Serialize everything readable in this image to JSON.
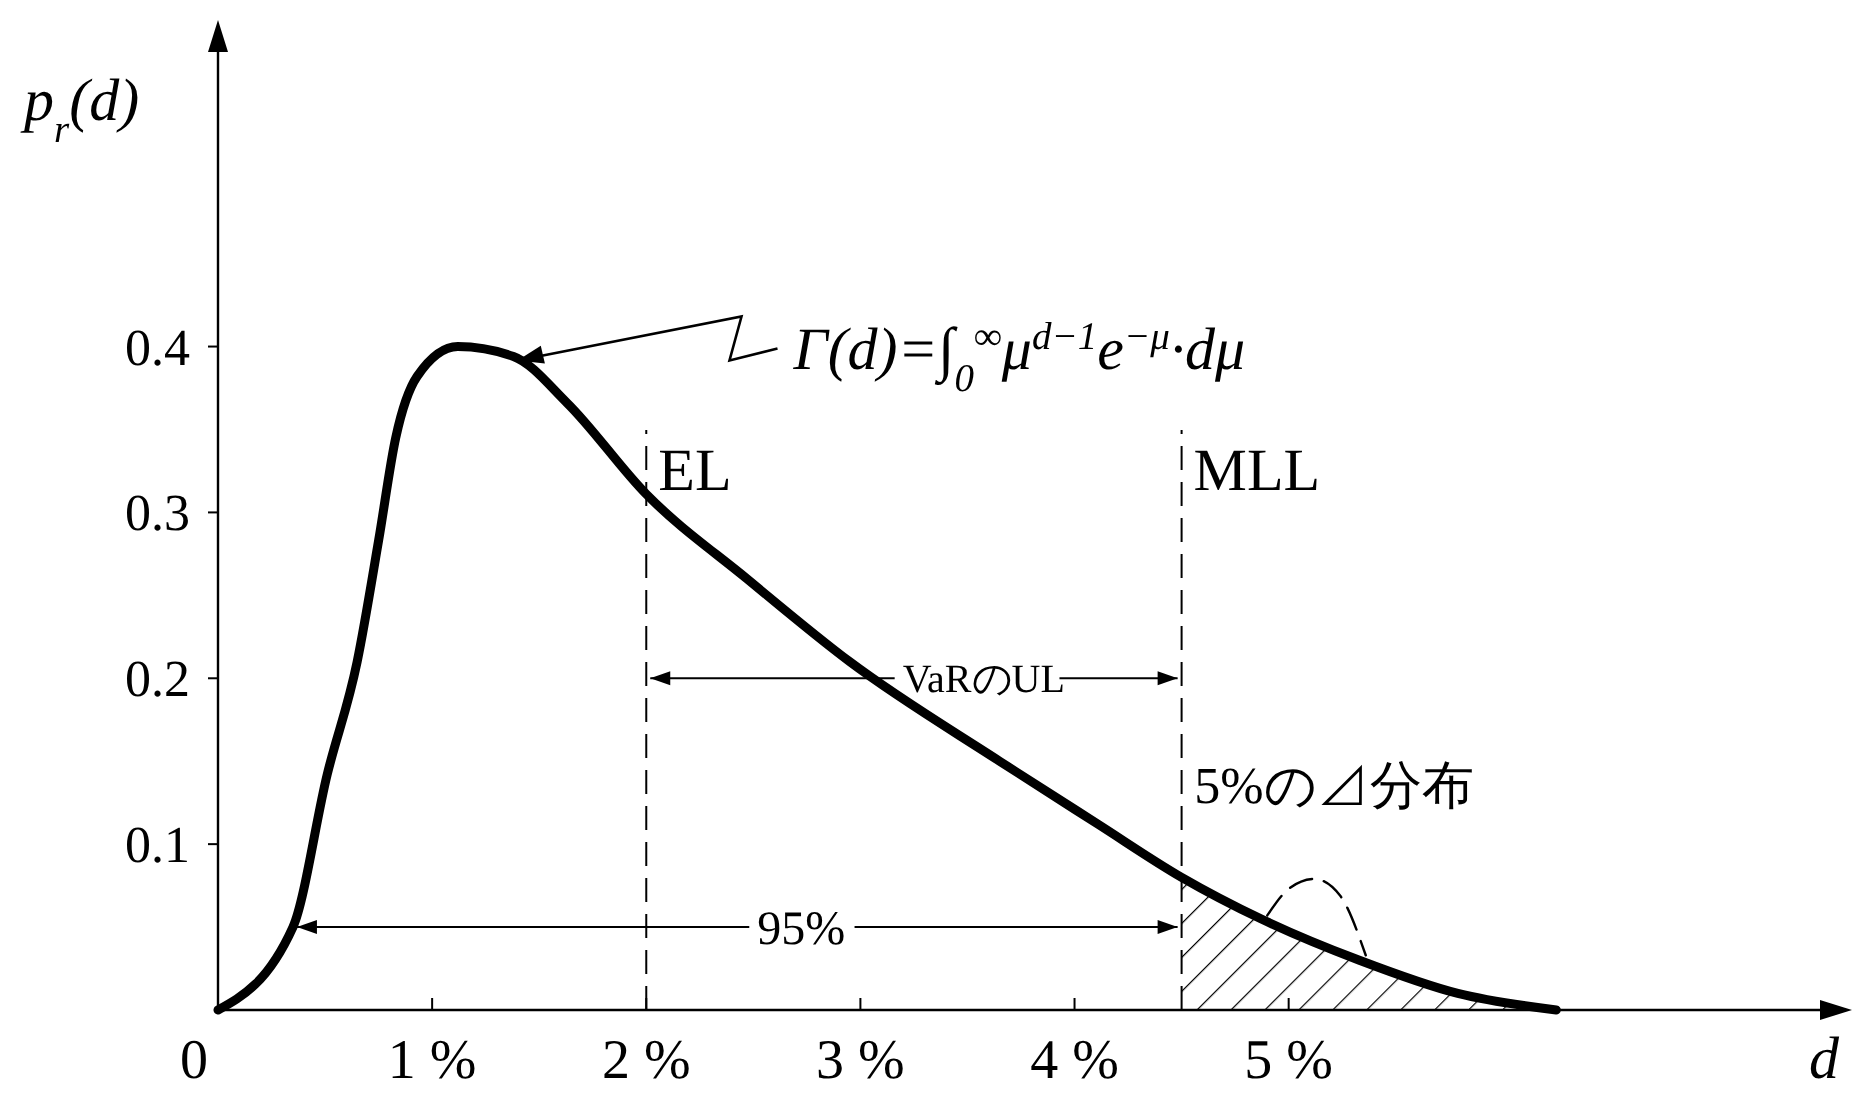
{
  "chart_data": {
    "type": "line",
    "xlabel": "d",
    "ylabel": "p$_{r}$(d)",
    "xlim": [
      0,
      7.5
    ],
    "ylim": [
      0,
      0.58
    ],
    "xticks": [
      0,
      {
        "value": 1,
        "label": "1 %"
      },
      {
        "value": 2,
        "label": "2 %"
      },
      {
        "value": 3,
        "label": "3 %"
      },
      {
        "value": 4,
        "label": "4 %"
      },
      {
        "value": 5,
        "label": "5 %"
      }
    ],
    "yticks": [
      0.1,
      0.2,
      0.3,
      0.4
    ],
    "grid": false,
    "marker": "none",
    "series": [
      {
        "color": "#000000",
        "x": [
          0,
          0.35,
          0.51,
          0.65,
          0.75,
          0.83,
          0.93,
          1.12,
          1.38,
          1.63,
          2,
          2.47,
          2.95,
          3.65,
          4.11,
          4.5,
          4.87,
          5.33,
          5.79,
          6.25
        ],
        "values": [
          0,
          0.05,
          0.142,
          0.21,
          0.283,
          0.345,
          0.382,
          0.4,
          0.394,
          0.366,
          0.311,
          0.26,
          0.21,
          0.15,
          0.112,
          0.08,
          0.055,
          0.03,
          0.01,
          0
        ]
      },
      {
        "color": "#000000",
        "line_style": "dashed",
        "x": [
          4.9,
          5.0,
          5.12,
          5.24,
          5.36
        ],
        "values": [
          0.057,
          0.073,
          0.079,
          0.069,
          0.033
        ]
      },
      {
        "type": "area",
        "color": "#000000",
        "x": [
          4.5,
          4.87,
          5.33,
          5.79,
          6.25
        ],
        "values": [
          0.08,
          0.055,
          0.03,
          0.01,
          0
        ]
      }
    ],
    "ref_lines": [
      {
        "axis": "x",
        "value": 2,
        "label": "EL",
        "line_style": "dashed"
      },
      {
        "axis": "x",
        "value": 4.5,
        "label": "MLL",
        "line_style": "dashed"
      }
    ],
    "annotations": [
      {
        "text": "Γ(d)=∫$_{0}$$^{∞}$μ$^{d−1}$e$^{−μ}$·dμ",
        "x": 1.38,
        "y": 0.394
      },
      {
        "text": "VaRのUL",
        "x": 4.5,
        "y": 0.2
      },
      {
        "text": "95%",
        "x": 4.5,
        "y": 0.05
      },
      {
        "text": "5%の⊿分布",
        "x": 5.12,
        "y": 0.079
      }
    ]
  }
}
